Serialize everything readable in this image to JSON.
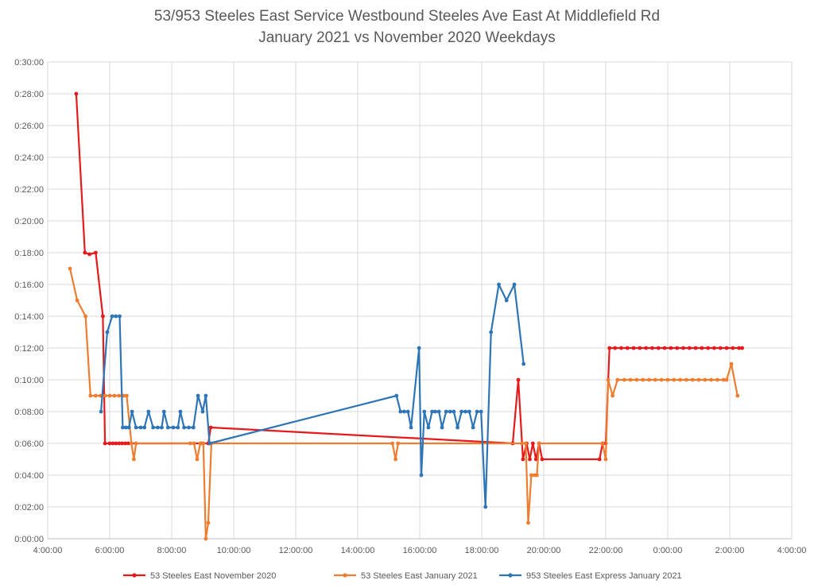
{
  "chart_data": {
    "type": "line",
    "title": "53/953 Steeles East Service Westbound Steeles Ave East At Middlefield Rd",
    "subtitle": "January 2021 vs November 2020 Weekdays",
    "xlabel": "",
    "ylabel": "",
    "x_unit": "hours since midnight (values above 24 wrap past midnight)",
    "y_unit": "headway in minutes",
    "xlim": [
      4,
      28
    ],
    "ylim": [
      0,
      30
    ],
    "x_ticks": [
      {
        "value": 4,
        "label": "4:00:00"
      },
      {
        "value": 6,
        "label": "6:00:00"
      },
      {
        "value": 8,
        "label": "8:00:00"
      },
      {
        "value": 10,
        "label": "10:00:00"
      },
      {
        "value": 12,
        "label": "12:00:00"
      },
      {
        "value": 14,
        "label": "14:00:00"
      },
      {
        "value": 16,
        "label": "16:00:00"
      },
      {
        "value": 18,
        "label": "18:00:00"
      },
      {
        "value": 20,
        "label": "20:00:00"
      },
      {
        "value": 22,
        "label": "22:00:00"
      },
      {
        "value": 24,
        "label": "0:00:00"
      },
      {
        "value": 26,
        "label": "2:00:00"
      },
      {
        "value": 28,
        "label": "4:00:00"
      }
    ],
    "y_ticks": [
      {
        "value": 0,
        "label": "0:00:00"
      },
      {
        "value": 2,
        "label": "0:02:00"
      },
      {
        "value": 4,
        "label": "0:04:00"
      },
      {
        "value": 6,
        "label": "0:06:00"
      },
      {
        "value": 8,
        "label": "0:08:00"
      },
      {
        "value": 10,
        "label": "0:10:00"
      },
      {
        "value": 12,
        "label": "0:12:00"
      },
      {
        "value": 14,
        "label": "0:14:00"
      },
      {
        "value": 16,
        "label": "0:16:00"
      },
      {
        "value": 18,
        "label": "0:18:00"
      },
      {
        "value": 20,
        "label": "0:20:00"
      },
      {
        "value": 22,
        "label": "0:22:00"
      },
      {
        "value": 24,
        "label": "0:24:00"
      },
      {
        "value": 26,
        "label": "0:26:00"
      },
      {
        "value": 28,
        "label": "0:28:00"
      },
      {
        "value": 30,
        "label": "0:30:00"
      }
    ],
    "grid": true,
    "legend_position": "bottom",
    "series": [
      {
        "name": "53 Steeles East November 2020",
        "color": "#e41a1c",
        "points": [
          [
            4.92,
            28
          ],
          [
            5.2,
            18
          ],
          [
            5.35,
            17.9
          ],
          [
            5.55,
            18
          ],
          [
            5.78,
            14
          ],
          [
            5.85,
            6
          ],
          [
            6.0,
            6
          ],
          [
            6.1,
            6
          ],
          [
            6.2,
            6
          ],
          [
            6.3,
            6
          ],
          [
            6.4,
            6
          ],
          [
            6.5,
            6
          ],
          [
            6.6,
            6
          ],
          [
            8.95,
            6
          ],
          [
            9.18,
            6
          ],
          [
            9.26,
            7
          ],
          [
            19.0,
            6
          ],
          [
            19.18,
            10
          ],
          [
            19.33,
            5
          ],
          [
            19.45,
            6
          ],
          [
            19.55,
            5
          ],
          [
            19.65,
            6
          ],
          [
            19.75,
            5
          ],
          [
            19.85,
            6
          ],
          [
            19.95,
            5
          ],
          [
            21.8,
            5
          ],
          [
            21.9,
            6
          ],
          [
            22.0,
            6
          ],
          [
            22.12,
            12
          ],
          [
            22.3,
            12
          ],
          [
            22.5,
            12
          ],
          [
            22.7,
            12
          ],
          [
            22.9,
            12
          ],
          [
            23.1,
            12
          ],
          [
            23.3,
            12
          ],
          [
            23.5,
            12
          ],
          [
            23.7,
            12
          ],
          [
            23.9,
            12
          ],
          [
            24.1,
            12
          ],
          [
            24.3,
            12
          ],
          [
            24.5,
            12
          ],
          [
            24.7,
            12
          ],
          [
            24.9,
            12
          ],
          [
            25.1,
            12
          ],
          [
            25.3,
            12
          ],
          [
            25.5,
            12
          ],
          [
            25.7,
            12
          ],
          [
            25.9,
            12
          ],
          [
            26.1,
            12
          ],
          [
            26.3,
            12
          ],
          [
            26.4,
            12
          ]
        ]
      },
      {
        "name": "53 Steeles East January 2021",
        "color": "#ed7d31",
        "points": [
          [
            4.72,
            17
          ],
          [
            4.95,
            15
          ],
          [
            5.22,
            14
          ],
          [
            5.38,
            9
          ],
          [
            5.55,
            9
          ],
          [
            5.7,
            9
          ],
          [
            5.85,
            9
          ],
          [
            6.0,
            9
          ],
          [
            6.15,
            9
          ],
          [
            6.3,
            9
          ],
          [
            6.45,
            9
          ],
          [
            6.55,
            9
          ],
          [
            6.7,
            6
          ],
          [
            6.78,
            5
          ],
          [
            6.85,
            6
          ],
          [
            8.6,
            6
          ],
          [
            8.72,
            6
          ],
          [
            8.82,
            5
          ],
          [
            8.92,
            6
          ],
          [
            9.02,
            6
          ],
          [
            9.1,
            0
          ],
          [
            9.18,
            1
          ],
          [
            9.28,
            6
          ],
          [
            15.12,
            6
          ],
          [
            15.22,
            5
          ],
          [
            15.3,
            6
          ],
          [
            19.3,
            6
          ],
          [
            19.42,
            6
          ],
          [
            19.5,
            1
          ],
          [
            19.6,
            4
          ],
          [
            19.7,
            4
          ],
          [
            19.78,
            4
          ],
          [
            19.85,
            6
          ],
          [
            21.9,
            6
          ],
          [
            22.0,
            5
          ],
          [
            22.08,
            10
          ],
          [
            22.22,
            9
          ],
          [
            22.38,
            10
          ],
          [
            22.6,
            10
          ],
          [
            22.8,
            10
          ],
          [
            23.0,
            10
          ],
          [
            23.2,
            10
          ],
          [
            23.4,
            10
          ],
          [
            23.6,
            10
          ],
          [
            23.8,
            10
          ],
          [
            24.0,
            10
          ],
          [
            24.2,
            10
          ],
          [
            24.4,
            10
          ],
          [
            24.6,
            10
          ],
          [
            24.8,
            10
          ],
          [
            25.0,
            10
          ],
          [
            25.2,
            10
          ],
          [
            25.4,
            10
          ],
          [
            25.6,
            10
          ],
          [
            25.8,
            10
          ],
          [
            25.9,
            10
          ],
          [
            26.05,
            11
          ],
          [
            26.25,
            9
          ]
        ]
      },
      {
        "name": "953 Steeles East Express January 2021",
        "color": "#2e75b6",
        "points": [
          [
            5.72,
            8
          ],
          [
            5.92,
            13
          ],
          [
            6.08,
            14
          ],
          [
            6.2,
            14
          ],
          [
            6.32,
            14
          ],
          [
            6.42,
            7
          ],
          [
            6.52,
            7
          ],
          [
            6.62,
            7
          ],
          [
            6.72,
            8
          ],
          [
            6.85,
            7
          ],
          [
            7.0,
            7
          ],
          [
            7.12,
            7
          ],
          [
            7.25,
            8
          ],
          [
            7.4,
            7
          ],
          [
            7.55,
            7
          ],
          [
            7.68,
            7
          ],
          [
            7.75,
            8
          ],
          [
            7.88,
            7
          ],
          [
            8.05,
            7
          ],
          [
            8.2,
            7
          ],
          [
            8.28,
            8
          ],
          [
            8.4,
            7
          ],
          [
            8.55,
            7
          ],
          [
            8.7,
            7
          ],
          [
            8.85,
            9
          ],
          [
            9.0,
            8
          ],
          [
            9.1,
            9
          ],
          [
            9.22,
            6
          ],
          [
            15.25,
            9
          ],
          [
            15.38,
            8
          ],
          [
            15.5,
            8
          ],
          [
            15.62,
            8
          ],
          [
            15.72,
            7
          ],
          [
            15.98,
            12
          ],
          [
            16.05,
            4
          ],
          [
            16.15,
            8
          ],
          [
            16.28,
            7
          ],
          [
            16.4,
            8
          ],
          [
            16.5,
            8
          ],
          [
            16.62,
            8
          ],
          [
            16.72,
            7
          ],
          [
            16.85,
            8
          ],
          [
            16.98,
            8
          ],
          [
            17.1,
            8
          ],
          [
            17.22,
            7
          ],
          [
            17.35,
            8
          ],
          [
            17.48,
            8
          ],
          [
            17.6,
            8
          ],
          [
            17.72,
            7
          ],
          [
            17.85,
            8
          ],
          [
            17.98,
            8
          ],
          [
            18.12,
            2
          ],
          [
            18.3,
            13
          ],
          [
            18.55,
            16
          ],
          [
            18.8,
            15
          ],
          [
            19.05,
            16
          ],
          [
            19.35,
            11
          ]
        ]
      }
    ]
  }
}
